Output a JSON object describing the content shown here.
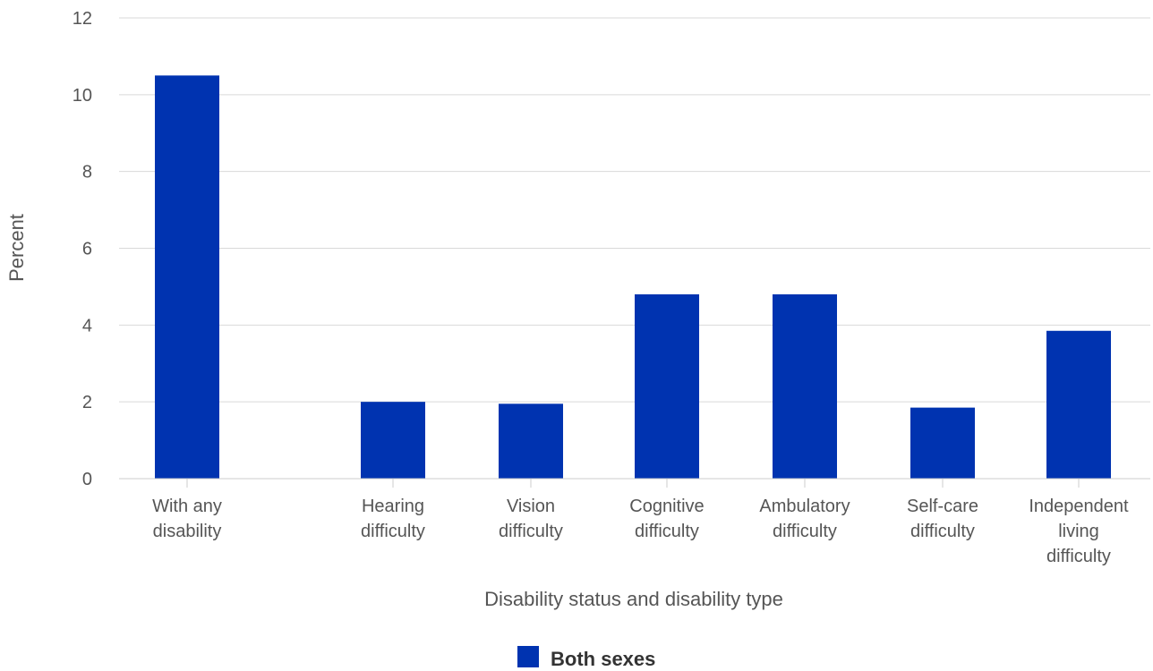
{
  "chart_data": {
    "type": "bar",
    "categories": [
      [
        "With any",
        "disability"
      ],
      [
        "Hearing",
        "difficulty"
      ],
      [
        "Vision",
        "difficulty"
      ],
      [
        "Cognitive",
        "difficulty"
      ],
      [
        "Ambulatory",
        "difficulty"
      ],
      [
        "Self-care",
        "difficulty"
      ],
      [
        "Independent",
        "living",
        "difficulty"
      ]
    ],
    "series": [
      {
        "name": "Both sexes",
        "color": "#0033b0",
        "values": [
          10.5,
          2.0,
          1.95,
          4.8,
          4.8,
          1.85,
          3.85
        ]
      }
    ],
    "xlabel": "Disability status and disability type",
    "ylabel": "Percent",
    "ylim": [
      0,
      12
    ],
    "yticks": [
      0,
      2,
      4,
      6,
      8,
      10,
      12
    ],
    "grid": true,
    "legend_position": "bottom-center"
  }
}
